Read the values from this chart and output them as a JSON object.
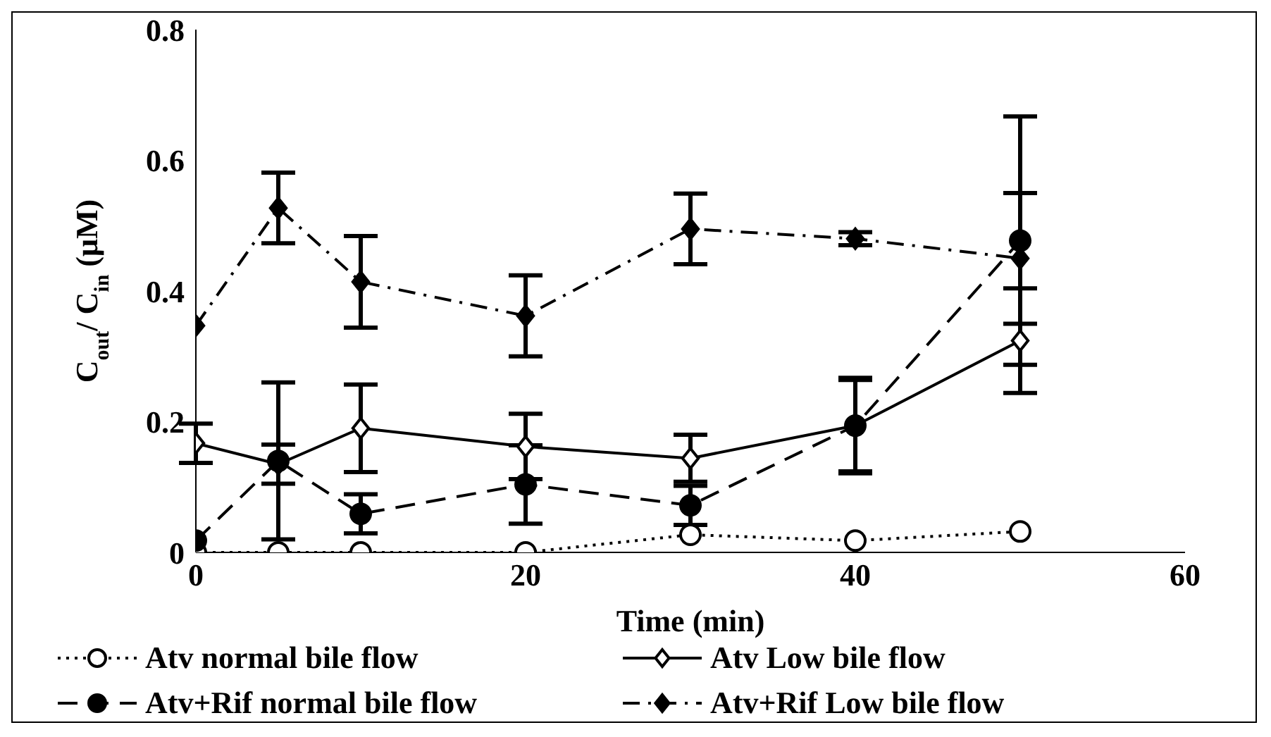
{
  "chart_data": {
    "type": "line",
    "xlabel": "Time (min)",
    "ylabel": "C$_{out}$/ C$_{in}$ (μM)",
    "x": [
      0,
      5,
      10,
      20,
      30,
      40,
      50
    ],
    "xlim": [
      0,
      60
    ],
    "xticks": [
      0,
      20,
      40,
      60
    ],
    "ylim": [
      0,
      0.8
    ],
    "yticks": [
      0,
      0.2,
      0.4,
      0.6,
      0.8
    ],
    "grid": false,
    "legend": "bottom",
    "series": [
      {
        "name": "Atv normal bile flow",
        "color": "#000000",
        "marker": "circle",
        "line_style": "dotted",
        "values": [
          0,
          0,
          0,
          0,
          0.027,
          0.018,
          0.032
        ]
      },
      {
        "name": "Atv Low bile flow",
        "color": "#000000",
        "marker": "diamond",
        "line_style": "solid",
        "values": [
          0.167,
          0.135,
          0.19,
          0.162,
          0.144,
          0.194,
          0.324
        ],
        "errors": [
          0.03,
          0.03,
          0.067,
          0.05,
          0.036,
          0.07,
          0.08
        ]
      },
      {
        "name": "Atv+Rif normal bile flow",
        "color": "#000000",
        "marker": "circle",
        "line_style": "dashed",
        "values": [
          0.018,
          0.14,
          0.059,
          0.104,
          0.072,
          0.194,
          0.477
        ],
        "errors": [
          null,
          0.12,
          0.03,
          0.06,
          0.03,
          0.073,
          0.19
        ]
      },
      {
        "name": "Atv+Rif Low bile flow",
        "color": "#000000",
        "marker": "diamond",
        "line_style": "dashdot",
        "values": [
          0.347,
          0.527,
          0.414,
          0.362,
          0.495,
          0.48,
          0.45
        ],
        "errors": [
          null,
          0.054,
          0.07,
          0.062,
          0.054,
          0.01,
          0.1
        ]
      }
    ]
  }
}
